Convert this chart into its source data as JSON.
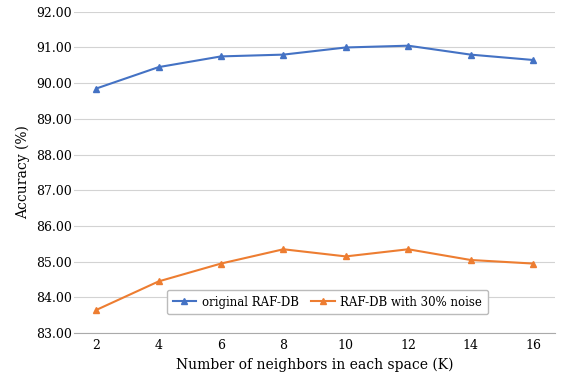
{
  "x": [
    2,
    4,
    6,
    8,
    10,
    12,
    14,
    16
  ],
  "blue_series": [
    89.85,
    90.45,
    90.75,
    90.8,
    91.0,
    91.05,
    90.8,
    90.65
  ],
  "orange_series": [
    83.65,
    84.45,
    84.95,
    85.35,
    85.15,
    85.35,
    85.05,
    84.95
  ],
  "blue_color": "#4472C4",
  "orange_color": "#ED7D31",
  "xlabel": "Number of neighbors in each space (K)",
  "ylabel": "Accuracy (%)",
  "ylim_min": 83.0,
  "ylim_max": 92.0,
  "yticks": [
    83.0,
    84.0,
    85.0,
    86.0,
    87.0,
    88.0,
    89.0,
    90.0,
    91.0,
    92.0
  ],
  "xticks": [
    2,
    4,
    6,
    8,
    10,
    12,
    14,
    16
  ],
  "legend_blue": "original RAF-DB",
  "legend_orange": "RAF-DB with 30% noise",
  "grid_color": "#D3D3D3",
  "background_color": "#FFFFFF",
  "marker_size": 5,
  "line_width": 1.5,
  "tick_fontsize": 9,
  "label_fontsize": 10
}
